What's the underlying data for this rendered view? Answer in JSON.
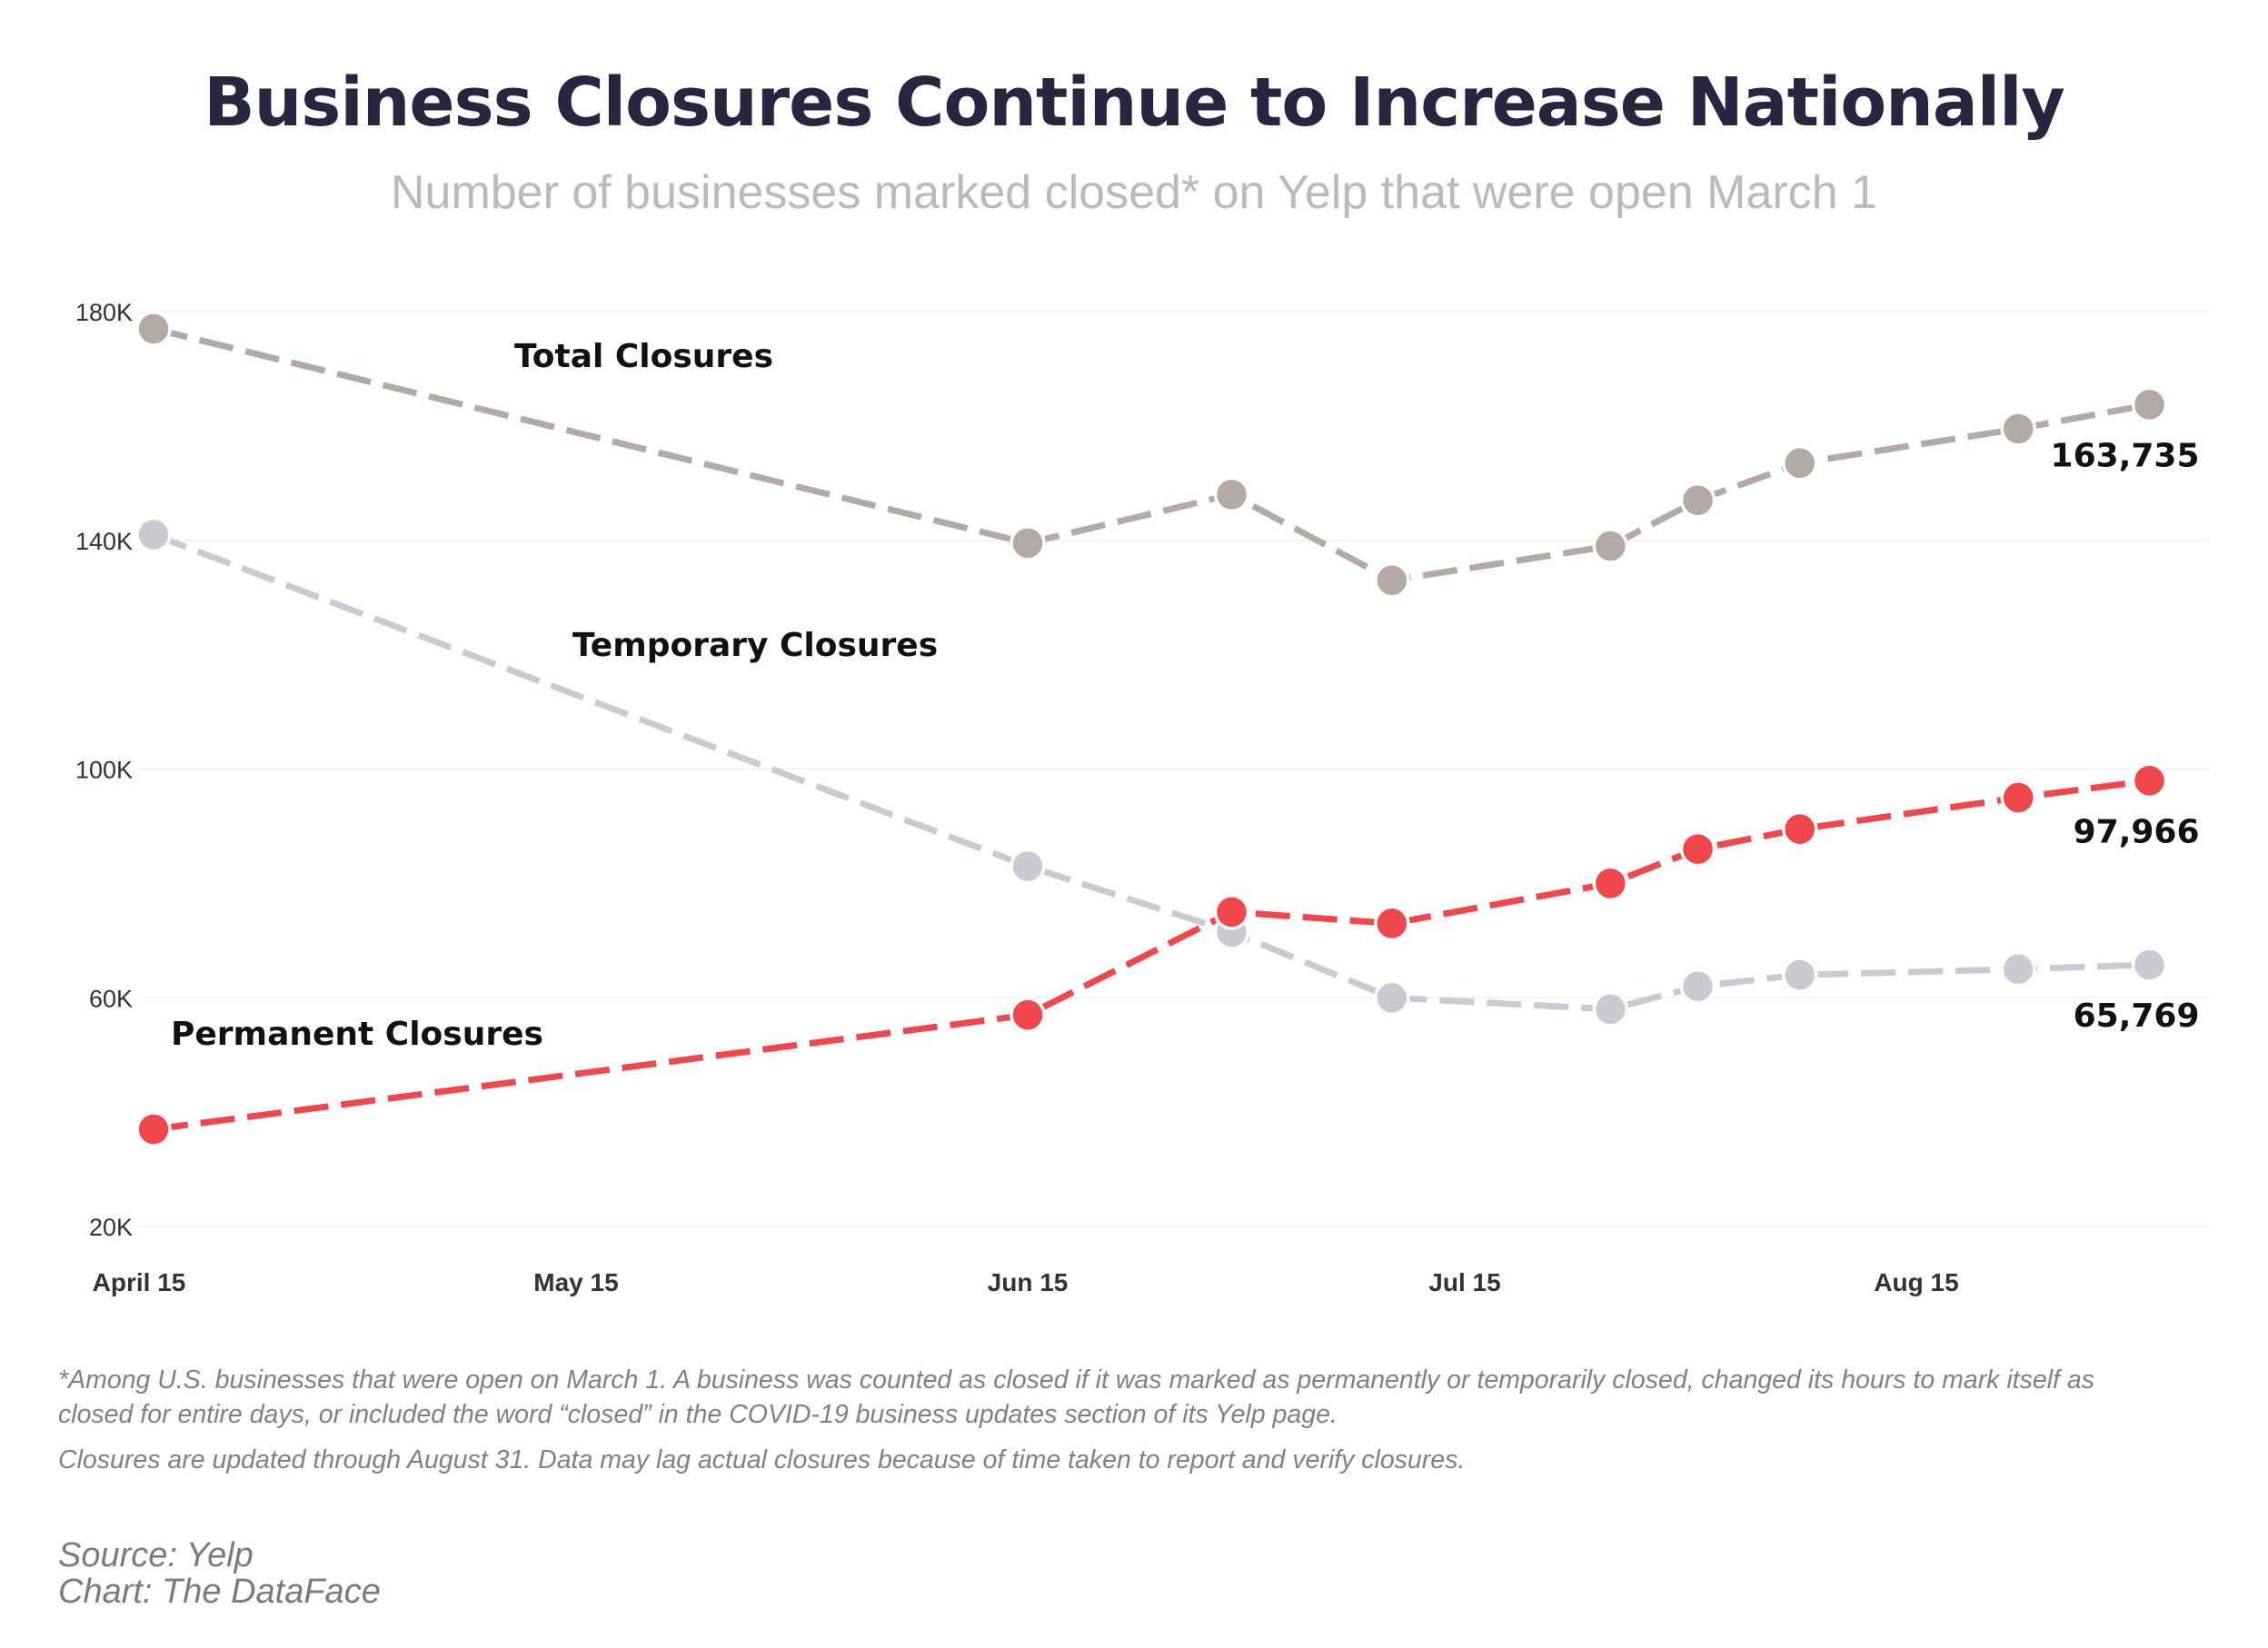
{
  "title": "Business Closures Continue to Increase Nationally",
  "subtitle": "Number of businesses marked closed* on Yelp that were open March 1",
  "footnotes": {
    "note1": "*Among U.S. businesses that were open on March 1. A business was counted as closed if it was marked as permanently or temporarily closed, changed its hours to mark itself as closed for entire days, or included the word “closed” in the COVID-19 business updates section of its Yelp page.",
    "note2": "Closures are updated through August 31. Data may lag actual closures because of time taken to report and verify closures.",
    "source": "Source: Yelp",
    "credit": "Chart: The DataFace"
  },
  "chart_data": {
    "type": "line",
    "x_dates": [
      "2020-04-16",
      "2020-06-15",
      "2020-06-29",
      "2020-07-10",
      "2020-07-25",
      "2020-07-31",
      "2020-08-07",
      "2020-08-22",
      "2020-08-31"
    ],
    "x_ticks": [
      {
        "date": "2020-04-15",
        "label": "April 15"
      },
      {
        "date": "2020-05-15",
        "label": "May 15"
      },
      {
        "date": "2020-06-15",
        "label": "Jun 15"
      },
      {
        "date": "2020-07-15",
        "label": "Jul 15"
      },
      {
        "date": "2020-08-15",
        "label": "Aug 15"
      }
    ],
    "y_ticks": [
      {
        "value": 20000,
        "label": "20K"
      },
      {
        "value": 60000,
        "label": "60K"
      },
      {
        "value": 100000,
        "label": "100K"
      },
      {
        "value": 140000,
        "label": "140K"
      },
      {
        "value": 180000,
        "label": "180K"
      }
    ],
    "ylim": [
      20000,
      180000
    ],
    "grid": true,
    "series": [
      {
        "name": "Total Closures",
        "color": "#b3aaa6",
        "values": [
          177000,
          139500,
          148000,
          133000,
          139000,
          147000,
          153500,
          159500,
          163735
        ],
        "end_label": "163,735"
      },
      {
        "name": "Temporary Closures",
        "color": "#cbcad3",
        "values": [
          141000,
          83000,
          71500,
          60000,
          58000,
          62000,
          64000,
          65000,
          65769
        ],
        "end_label": "65,769"
      },
      {
        "name": "Permanent Closures",
        "color": "#f0474c",
        "values": [
          37000,
          57000,
          75000,
          73000,
          80000,
          86000,
          89500,
          95000,
          97966
        ],
        "end_label": "97,966"
      }
    ]
  }
}
